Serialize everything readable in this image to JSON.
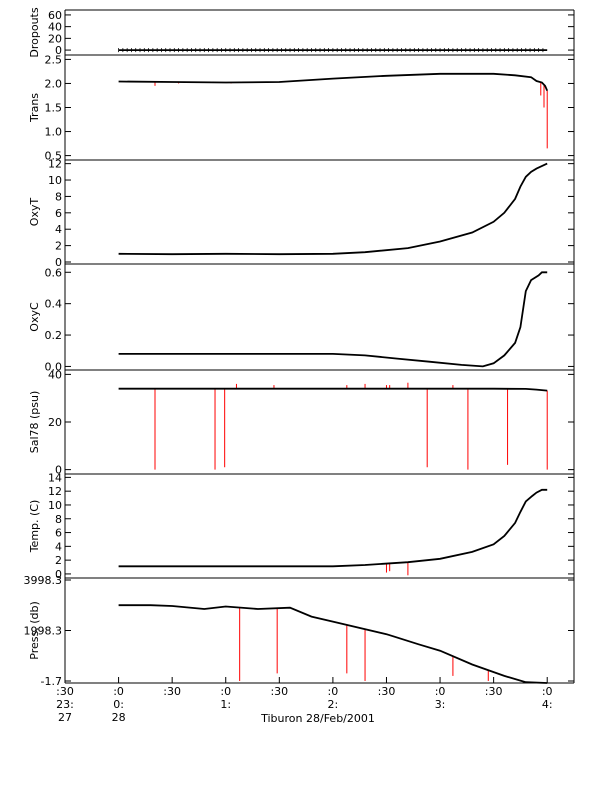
{
  "chart_data": {
    "type": "line",
    "title": "Tiburon 28/Feb/2001",
    "colors": {
      "data": "#000000",
      "spikes": "#ff0000",
      "axes": "#000000"
    },
    "x_axis": {
      "ticks": [
        {
          "t": -0.5,
          "lines": [
            ":30",
            "23:",
            "27"
          ]
        },
        {
          "t": 0.0,
          "lines": [
            ":0",
            "0:",
            "28"
          ]
        },
        {
          "t": 0.5,
          "lines": [
            ":30",
            "",
            ""
          ]
        },
        {
          "t": 1.0,
          "lines": [
            ":0",
            "1:",
            ""
          ]
        },
        {
          "t": 1.5,
          "lines": [
            ":30",
            "",
            ""
          ]
        },
        {
          "t": 2.0,
          "lines": [
            ":0",
            "2:",
            ""
          ]
        },
        {
          "t": 2.5,
          "lines": [
            ":30",
            "",
            ""
          ]
        },
        {
          "t": 3.0,
          "lines": [
            ":0",
            "3:",
            ""
          ]
        },
        {
          "t": 3.5,
          "lines": [
            ":30",
            "",
            ""
          ]
        },
        {
          "t": 4.0,
          "lines": [
            ":0",
            "4:",
            ""
          ]
        }
      ],
      "range_hours": [
        -0.5,
        4.25
      ],
      "data_range_hours": [
        0.0,
        4.0
      ]
    },
    "panels": [
      {
        "name": "Dropouts",
        "ylabel": "Dropouts",
        "ylim": [
          -5,
          65
        ],
        "ticks": [
          {
            "v": 0,
            "label": "0"
          },
          {
            "v": 20,
            "label": "20"
          },
          {
            "v": 40,
            "label": "40"
          },
          {
            "v": 60,
            "label": "60"
          }
        ],
        "series": [
          [
            0,
            0
          ],
          [
            4,
            0
          ]
        ],
        "spikes": [],
        "marker_noise": true
      },
      {
        "name": "Trans",
        "ylabel": "Trans",
        "ylim": [
          0.45,
          2.55
        ],
        "ticks": [
          {
            "v": 0.5,
            "label": "0.5"
          },
          {
            "v": 1.0,
            "label": "1.0"
          },
          {
            "v": 1.5,
            "label": "1.5"
          },
          {
            "v": 2.0,
            "label": "2.0"
          },
          {
            "v": 2.5,
            "label": "2.5"
          }
        ],
        "series": [
          [
            0,
            2.04
          ],
          [
            0.5,
            2.03
          ],
          [
            1.0,
            2.02
          ],
          [
            1.5,
            2.03
          ],
          [
            2.0,
            2.1
          ],
          [
            2.5,
            2.16
          ],
          [
            3.0,
            2.2
          ],
          [
            3.5,
            2.2
          ],
          [
            3.7,
            2.17
          ],
          [
            3.85,
            2.13
          ],
          [
            3.9,
            2.05
          ],
          [
            3.95,
            2.02
          ],
          [
            3.98,
            1.95
          ],
          [
            4.0,
            1.85
          ]
        ],
        "spikes": [
          [
            0.34,
            1.95
          ],
          [
            0.56,
            2.0
          ],
          [
            1.05,
            2.0
          ],
          [
            3.94,
            1.75
          ],
          [
            3.97,
            1.5
          ],
          [
            4.0,
            0.65
          ]
        ]
      },
      {
        "name": "OxyT",
        "ylabel": "OxyT",
        "ylim": [
          0,
          12.2
        ],
        "ticks": [
          {
            "v": 0,
            "label": "0"
          },
          {
            "v": 2,
            "label": "2"
          },
          {
            "v": 4,
            "label": "4"
          },
          {
            "v": 6,
            "label": "6"
          },
          {
            "v": 8,
            "label": "8"
          },
          {
            "v": 10,
            "label": "10"
          },
          {
            "v": 12,
            "label": "12"
          }
        ],
        "series": [
          [
            0,
            1.0
          ],
          [
            0.5,
            0.95
          ],
          [
            1.0,
            1.0
          ],
          [
            1.5,
            0.95
          ],
          [
            2.0,
            1.0
          ],
          [
            2.3,
            1.2
          ],
          [
            2.7,
            1.7
          ],
          [
            3.0,
            2.5
          ],
          [
            3.3,
            3.6
          ],
          [
            3.5,
            4.9
          ],
          [
            3.6,
            6.0
          ],
          [
            3.7,
            7.7
          ],
          [
            3.75,
            9.2
          ],
          [
            3.8,
            10.4
          ],
          [
            3.85,
            11.0
          ],
          [
            3.9,
            11.4
          ],
          [
            4.0,
            12.0
          ]
        ],
        "spikes": []
      },
      {
        "name": "OxyC",
        "ylabel": "OxyC",
        "ylim": [
          -0.01,
          0.64
        ],
        "ticks": [
          {
            "v": 0.0,
            "label": "0.0"
          },
          {
            "v": 0.2,
            "label": "0.2"
          },
          {
            "v": 0.4,
            "label": "0.4"
          },
          {
            "v": 0.6,
            "label": "0.6"
          }
        ],
        "series": [
          [
            0,
            0.08
          ],
          [
            1.0,
            0.08
          ],
          [
            2.0,
            0.08
          ],
          [
            2.3,
            0.07
          ],
          [
            2.6,
            0.05
          ],
          [
            2.9,
            0.03
          ],
          [
            3.2,
            0.01
          ],
          [
            3.4,
            0.0
          ],
          [
            3.5,
            0.02
          ],
          [
            3.6,
            0.07
          ],
          [
            3.7,
            0.15
          ],
          [
            3.75,
            0.25
          ],
          [
            3.8,
            0.48
          ],
          [
            3.85,
            0.55
          ],
          [
            3.92,
            0.58
          ],
          [
            3.95,
            0.6
          ],
          [
            4.0,
            0.6
          ]
        ],
        "spikes": []
      },
      {
        "name": "Sal78",
        "ylabel": "Sal78 (psu)",
        "ylim": [
          -1,
          41
        ],
        "ticks": [
          {
            "v": 0,
            "label": "0"
          },
          {
            "v": 20,
            "label": "20"
          },
          {
            "v": 40,
            "label": "40"
          }
        ],
        "series": [
          [
            0,
            34
          ],
          [
            1.0,
            34
          ],
          [
            2.0,
            34
          ],
          [
            3.0,
            34
          ],
          [
            3.5,
            34
          ],
          [
            3.8,
            33.9
          ],
          [
            3.9,
            33.6
          ],
          [
            4.0,
            33.2
          ]
        ],
        "spikes": [
          [
            0.34,
            0
          ],
          [
            0.9,
            0
          ],
          [
            0.99,
            1
          ],
          [
            2.88,
            1
          ],
          [
            3.26,
            0
          ],
          [
            3.63,
            2
          ],
          [
            4.0,
            0
          ]
        ],
        "up_spikes": [
          [
            1.1,
            36
          ],
          [
            1.45,
            35.5
          ],
          [
            2.13,
            35.5
          ],
          [
            2.3,
            36
          ],
          [
            2.5,
            35.5
          ],
          [
            2.53,
            35.5
          ],
          [
            2.7,
            36.5
          ],
          [
            3.12,
            35.5
          ]
        ]
      },
      {
        "name": "Temp",
        "ylabel": "Temp. (C)",
        "ylim": [
          -0.3,
          14.2
        ],
        "ticks": [
          {
            "v": 0,
            "label": "0"
          },
          {
            "v": 2,
            "label": "2"
          },
          {
            "v": 4,
            "label": "4"
          },
          {
            "v": 6,
            "label": "6"
          },
          {
            "v": 8,
            "label": "8"
          },
          {
            "v": 10,
            "label": "10"
          },
          {
            "v": 12,
            "label": "12"
          },
          {
            "v": 14,
            "label": "14"
          }
        ],
        "series": [
          [
            0,
            1.1
          ],
          [
            1.0,
            1.1
          ],
          [
            2.0,
            1.1
          ],
          [
            2.3,
            1.3
          ],
          [
            2.7,
            1.7
          ],
          [
            3.0,
            2.2
          ],
          [
            3.3,
            3.2
          ],
          [
            3.5,
            4.3
          ],
          [
            3.6,
            5.5
          ],
          [
            3.7,
            7.4
          ],
          [
            3.75,
            9.0
          ],
          [
            3.8,
            10.5
          ],
          [
            3.86,
            11.3
          ],
          [
            3.9,
            11.8
          ],
          [
            3.95,
            12.2
          ],
          [
            4.0,
            12.2
          ]
        ],
        "spikes": [
          [
            2.5,
            0.2
          ],
          [
            2.53,
            0.4
          ],
          [
            2.7,
            -0.2
          ]
        ]
      },
      {
        "name": "Press",
        "ylabel": "Press. (db)",
        "ylim": [
          -1.7,
          3998.3
        ],
        "ticks": [
          {
            "v": -1.7,
            "label": "-1.7"
          },
          {
            "v": 1998.3,
            "label": "1998.3"
          },
          {
            "v": 3998.3,
            "label": "3998.3"
          }
        ],
        "series": [
          [
            0,
            3000
          ],
          [
            0.3,
            3000
          ],
          [
            0.5,
            2970
          ],
          [
            0.8,
            2850
          ],
          [
            1.0,
            2950
          ],
          [
            1.3,
            2850
          ],
          [
            1.6,
            2900
          ],
          [
            1.8,
            2550
          ],
          [
            2.0,
            2350
          ],
          [
            2.5,
            1850
          ],
          [
            2.8,
            1450
          ],
          [
            3.0,
            1200
          ],
          [
            3.3,
            650
          ],
          [
            3.6,
            200
          ],
          [
            3.8,
            -50
          ],
          [
            4.0,
            -80
          ]
        ],
        "spikes": [
          [
            1.13,
            -1.7
          ],
          [
            1.48,
            300
          ],
          [
            2.13,
            300
          ],
          [
            2.3,
            0
          ],
          [
            3.12,
            200
          ],
          [
            3.45,
            0
          ]
        ]
      }
    ]
  }
}
